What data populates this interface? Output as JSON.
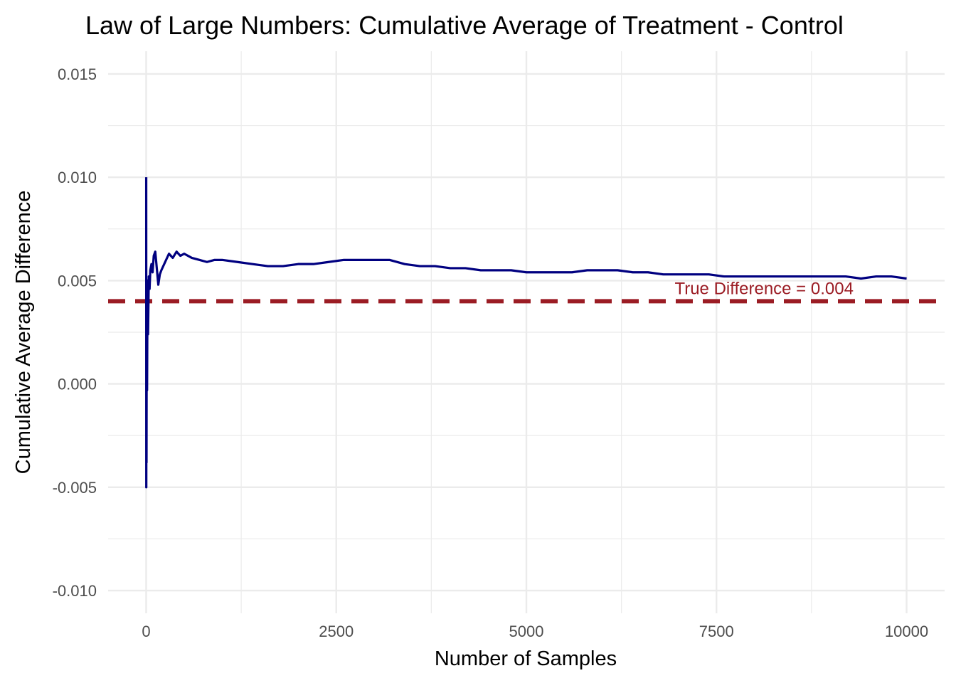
{
  "chart_data": {
    "type": "line",
    "title": "Law of Large Numbers: Cumulative Average of Treatment - Control",
    "xlabel": "Number of Samples",
    "ylabel": "Cumulative Average Difference",
    "xlim": [
      -500,
      10500
    ],
    "ylim": [
      -0.0111,
      0.0161
    ],
    "x_ticks": [
      0,
      2500,
      5000,
      7500,
      10000
    ],
    "x_tick_labels": [
      "0",
      "2500",
      "5000",
      "7500",
      "10000"
    ],
    "y_ticks": [
      -0.01,
      -0.005,
      0.0,
      0.005,
      0.01,
      0.015
    ],
    "y_tick_labels": [
      "-0.010",
      "-0.005",
      "0.000",
      "0.005",
      "0.010",
      "0.015"
    ],
    "grid": true,
    "series": [
      {
        "color": "#000080",
        "x": [
          1,
          2,
          3,
          5,
          8,
          12,
          18,
          25,
          35,
          45,
          55,
          70,
          85,
          100,
          120,
          140,
          160,
          180,
          200,
          250,
          300,
          350,
          400,
          450,
          500,
          600,
          700,
          800,
          900,
          1000,
          1200,
          1400,
          1600,
          1800,
          2000,
          2200,
          2400,
          2600,
          2800,
          3000,
          3200,
          3400,
          3600,
          3800,
          4000,
          4200,
          4400,
          4600,
          4800,
          5000,
          5200,
          5400,
          5600,
          5800,
          6000,
          6200,
          6400,
          6600,
          6800,
          7000,
          7200,
          7400,
          7600,
          7800,
          8000,
          8200,
          8400,
          8600,
          8800,
          9000,
          9200,
          9400,
          9600,
          9800,
          10000
        ],
        "values": [
          0.01,
          -0.005,
          0.0035,
          -0.0038,
          0.0045,
          -0.0003,
          0.005,
          0.0024,
          0.0052,
          0.0046,
          0.0055,
          0.0058,
          0.0054,
          0.0062,
          0.0064,
          0.0056,
          0.0048,
          0.0053,
          0.0055,
          0.0059,
          0.0063,
          0.0061,
          0.0064,
          0.0062,
          0.0063,
          0.0061,
          0.006,
          0.0059,
          0.006,
          0.006,
          0.0059,
          0.0058,
          0.0057,
          0.0057,
          0.0058,
          0.0058,
          0.0059,
          0.006,
          0.006,
          0.006,
          0.006,
          0.0058,
          0.0057,
          0.0057,
          0.0056,
          0.0056,
          0.0055,
          0.0055,
          0.0055,
          0.0054,
          0.0054,
          0.0054,
          0.0054,
          0.0055,
          0.0055,
          0.0055,
          0.0054,
          0.0054,
          0.0053,
          0.0053,
          0.0053,
          0.0053,
          0.0052,
          0.0052,
          0.0052,
          0.0052,
          0.0052,
          0.0052,
          0.0052,
          0.0052,
          0.0052,
          0.0051,
          0.0052,
          0.0052,
          0.0051
        ]
      }
    ],
    "reference_line": {
      "y": 0.004,
      "color": "#9B1C24",
      "style": "dashed",
      "label": "True Difference = 0.004"
    }
  }
}
